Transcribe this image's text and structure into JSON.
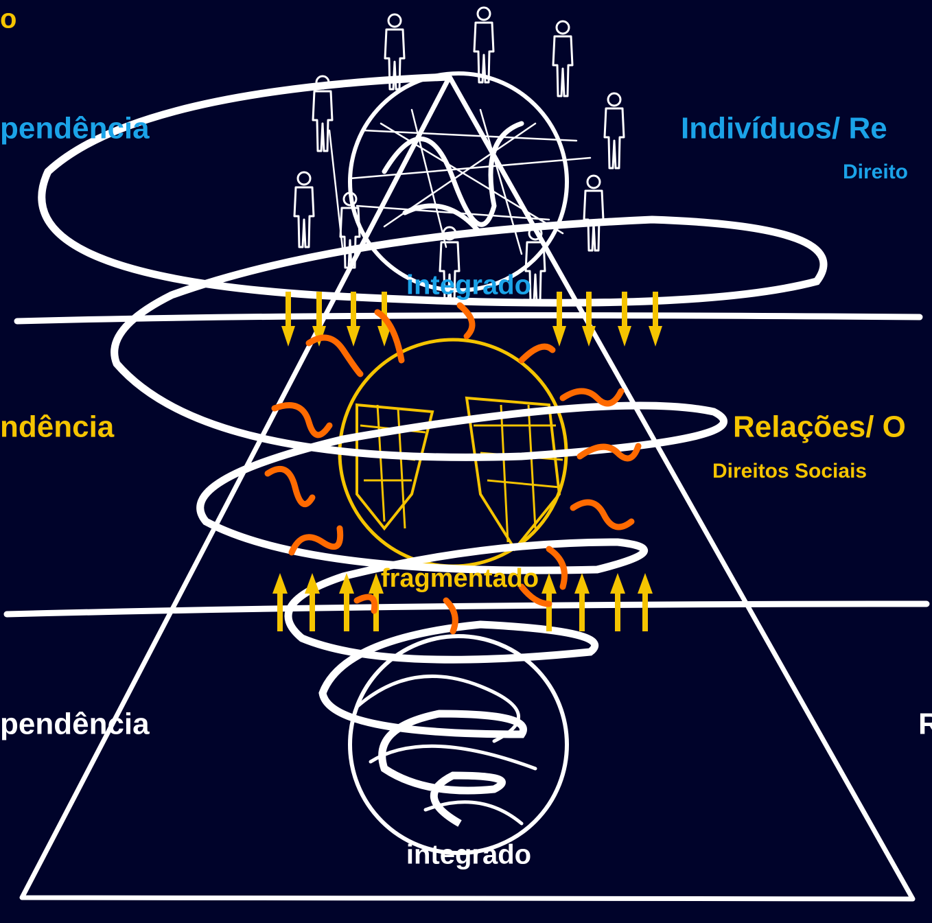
{
  "top": {
    "corner": "o",
    "left": "pendência",
    "right": "Indivíduos/ Re",
    "right_sub": "Direito",
    "center": "integrado"
  },
  "middle": {
    "left": "ndência",
    "right": "Relações/ O",
    "right_sub": "Direitos Sociais",
    "center": "fragmentado"
  },
  "bottom": {
    "left": "pendência",
    "right": "R",
    "center": "integrado"
  }
}
